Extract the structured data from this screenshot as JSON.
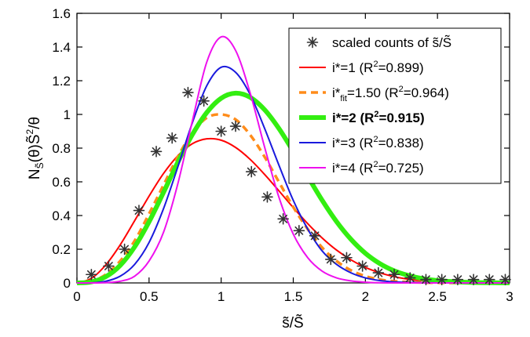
{
  "chart_data": {
    "type": "line",
    "title": "",
    "xlabel": "s̃/S̃",
    "ylabel": "N",
    "ylabel_sub": "S̃",
    "ylabel_rest": "(θ)S̃",
    "ylabel_sup": "2",
    "ylabel_tail": "/θ",
    "xlim": [
      0,
      3
    ],
    "ylim": [
      0,
      1.6
    ],
    "x_ticks": [
      0,
      0.5,
      1,
      1.5,
      2,
      2.5,
      3
    ],
    "x_tick_labels": [
      "0",
      "0.5",
      "1",
      "1.5",
      "2",
      "2.5",
      "3"
    ],
    "y_ticks": [
      0,
      0.2,
      0.4,
      0.6,
      0.8,
      1,
      1.2,
      1.4,
      1.6
    ],
    "y_tick_labels": [
      "0",
      "0.2",
      "0.4",
      "0.6",
      "0.8",
      "1",
      "1.2",
      "1.4",
      "1.6"
    ],
    "grid": false,
    "legend_position": "top-right",
    "scatter": {
      "label": "scaled counts of s̃/S̃",
      "color": "#333333",
      "x": [
        0.1,
        0.22,
        0.33,
        0.43,
        0.55,
        0.66,
        0.77,
        0.88,
        1.0,
        1.1,
        1.21,
        1.32,
        1.43,
        1.54,
        1.65,
        1.76,
        1.87,
        1.98,
        2.09,
        2.2,
        2.31,
        2.42,
        2.53,
        2.64,
        2.75,
        2.86,
        2.97
      ],
      "y": [
        0.05,
        0.1,
        0.2,
        0.43,
        0.78,
        0.86,
        1.13,
        1.08,
        0.9,
        0.93,
        0.66,
        0.51,
        0.38,
        0.31,
        0.28,
        0.14,
        0.15,
        0.1,
        0.06,
        0.05,
        0.03,
        0.02,
        0.02,
        0.02,
        0.02,
        0.02,
        0.02
      ]
    },
    "series": [
      {
        "label_main": "i*=1",
        "label_r2": "(R",
        "label_sup": "2",
        "label_val": "=0.899)",
        "color": "#ff0000",
        "style": "solid",
        "width": "thin",
        "x": [
          0,
          0.1,
          0.2,
          0.3,
          0.4,
          0.5,
          0.6,
          0.7,
          0.8,
          0.9,
          1.0,
          1.1,
          1.2,
          1.3,
          1.4,
          1.5,
          1.6,
          1.7,
          1.8,
          1.9,
          2.0,
          2.1,
          2.2,
          2.3,
          2.4,
          2.5,
          2.6,
          2.7,
          2.8,
          2.9,
          3.0
        ],
        "y": [
          0.0,
          0.027,
          0.107,
          0.226,
          0.369,
          0.515,
          0.649,
          0.755,
          0.826,
          0.855,
          0.847,
          0.804,
          0.734,
          0.645,
          0.547,
          0.447,
          0.352,
          0.267,
          0.195,
          0.137,
          0.092,
          0.06,
          0.037,
          0.022,
          0.013,
          0.007,
          0.004,
          0.002,
          0.001,
          0.0005,
          0.0002
        ]
      },
      {
        "label_main": "i*",
        "label_sub": "fit",
        "label_rest": "=1.50",
        "label_r2": "(R",
        "label_sup": "2",
        "label_val": "=0.964)",
        "color": "#ff8c1a",
        "style": "dashed",
        "width": "medium",
        "x": [
          0,
          0.1,
          0.2,
          0.3,
          0.4,
          0.5,
          0.6,
          0.7,
          0.8,
          0.9,
          1.0,
          1.1,
          1.2,
          1.3,
          1.4,
          1.5,
          1.6,
          1.7,
          1.8,
          1.9,
          2.0,
          2.1,
          2.2,
          2.3,
          2.4,
          2.5,
          2.6,
          2.7,
          2.8,
          2.9,
          3.0
        ],
        "y": [
          0.0,
          0.01,
          0.05,
          0.13,
          0.25,
          0.41,
          0.58,
          0.75,
          0.89,
          0.98,
          1.0,
          0.97,
          0.88,
          0.75,
          0.6,
          0.45,
          0.32,
          0.21,
          0.13,
          0.075,
          0.04,
          0.02,
          0.01,
          0.005,
          0.002,
          0.001,
          0.0,
          0.0,
          0.0,
          0.0,
          0.0
        ]
      },
      {
        "label_main": "i*=2",
        "label_r2": "(R",
        "label_sup": "2",
        "label_val": "=0.915)",
        "bold": true,
        "color": "#33ee11",
        "style": "solid",
        "width": "thick",
        "x": [
          0,
          0.1,
          0.2,
          0.3,
          0.4,
          0.5,
          0.6,
          0.7,
          0.8,
          0.9,
          1.0,
          1.1,
          1.2,
          1.3,
          1.4,
          1.5,
          1.6,
          1.7,
          1.8,
          1.9,
          2.0,
          2.1,
          2.2,
          2.3,
          2.4,
          2.5,
          2.6,
          2.7,
          2.8,
          2.9,
          3.0
        ],
        "y": [
          0.0,
          0.006,
          0.037,
          0.104,
          0.214,
          0.363,
          0.537,
          0.717,
          0.88,
          1.011,
          1.096,
          1.126,
          1.102,
          1.029,
          0.917,
          0.78,
          0.633,
          0.491,
          0.364,
          0.259,
          0.176,
          0.115,
          0.072,
          0.044,
          0.025,
          0.014,
          0.008,
          0.004,
          0.002,
          0.001,
          0.0005
        ]
      },
      {
        "label_main": "i*=3",
        "label_r2": "(R",
        "label_sup": "2",
        "label_val": "=0.838)",
        "color": "#1a1add",
        "style": "solid",
        "width": "thin",
        "x": [
          0,
          0.1,
          0.2,
          0.3,
          0.4,
          0.5,
          0.6,
          0.7,
          0.8,
          0.9,
          1.0,
          1.1,
          1.2,
          1.3,
          1.4,
          1.5,
          1.6,
          1.7,
          1.8,
          1.9,
          2.0,
          2.1,
          2.2,
          2.3,
          2.4,
          2.5,
          2.6,
          2.7,
          2.8,
          2.9,
          3.0
        ],
        "y": [
          0.0,
          0.0,
          0.01,
          0.04,
          0.11,
          0.24,
          0.44,
          0.69,
          0.95,
          1.17,
          1.28,
          1.25,
          1.12,
          0.92,
          0.7,
          0.49,
          0.32,
          0.19,
          0.11,
          0.06,
          0.03,
          0.014,
          0.006,
          0.003,
          0.001,
          0.0,
          0.0,
          0.0,
          0.0,
          0.0,
          0.0
        ]
      },
      {
        "label_main": "i*=4",
        "label_r2": "(R",
        "label_sup": "2",
        "label_val": "=0.725)",
        "color": "#ee11ee",
        "style": "solid",
        "width": "thin",
        "x": [
          0,
          0.1,
          0.2,
          0.3,
          0.4,
          0.5,
          0.6,
          0.7,
          0.8,
          0.9,
          1.0,
          1.1,
          1.2,
          1.3,
          1.4,
          1.5,
          1.6,
          1.7,
          1.8,
          1.9,
          2.0,
          2.1,
          2.2,
          2.3,
          2.4,
          2.5,
          2.6,
          2.7,
          2.8,
          2.9,
          3.0
        ],
        "y": [
          0.0,
          0.0,
          0.002,
          0.01,
          0.04,
          0.13,
          0.3,
          0.59,
          0.96,
          1.31,
          1.46,
          1.38,
          1.13,
          0.81,
          0.51,
          0.29,
          0.15,
          0.07,
          0.03,
          0.012,
          0.004,
          0.001,
          0.0,
          0.0,
          0.0,
          0.0,
          0.0,
          0.0,
          0.0,
          0.0,
          0.0
        ]
      }
    ]
  }
}
